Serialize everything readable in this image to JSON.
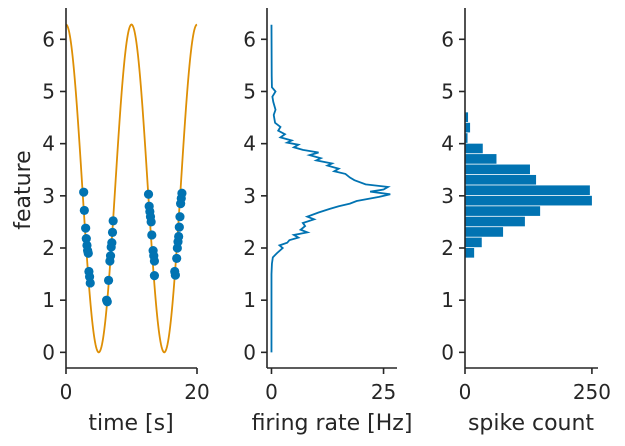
{
  "chart_data": [
    {
      "type": "line+scatter",
      "xlabel": "time [s]",
      "ylabel": "feature",
      "xlim": [
        0,
        20
      ],
      "ylim": [
        -0.3,
        6.6
      ],
      "xticks": [
        0,
        20
      ],
      "yticks": [
        0,
        1,
        2,
        3,
        4,
        5,
        6
      ],
      "grid": false,
      "series": [
        {
          "type": "line",
          "color": "#de8f05",
          "function": "pi + pi*cos(2*pi*t/10)",
          "t_range": [
            0,
            20
          ]
        },
        {
          "type": "scatter",
          "color": "#0173b2",
          "points": [
            [
              2.7,
              3.07
            ],
            [
              2.8,
              2.72
            ],
            [
              3.0,
              2.38
            ],
            [
              3.1,
              2.18
            ],
            [
              3.2,
              2.05
            ],
            [
              3.3,
              1.95
            ],
            [
              3.4,
              1.9
            ],
            [
              3.5,
              1.55
            ],
            [
              3.6,
              1.45
            ],
            [
              3.7,
              1.33
            ],
            [
              6.2,
              1.0
            ],
            [
              6.3,
              0.97
            ],
            [
              6.5,
              1.38
            ],
            [
              6.7,
              1.75
            ],
            [
              6.8,
              1.85
            ],
            [
              6.9,
              2.02
            ],
            [
              7.0,
              2.1
            ],
            [
              7.1,
              2.3
            ],
            [
              7.2,
              2.52
            ],
            [
              12.6,
              3.03
            ],
            [
              12.7,
              2.8
            ],
            [
              12.8,
              2.7
            ],
            [
              12.9,
              2.6
            ],
            [
              13.0,
              2.5
            ],
            [
              13.1,
              2.25
            ],
            [
              13.3,
              1.95
            ],
            [
              13.4,
              1.85
            ],
            [
              13.5,
              1.75
            ],
            [
              13.5,
              1.47
            ],
            [
              16.6,
              1.55
            ],
            [
              16.7,
              1.48
            ],
            [
              16.9,
              1.8
            ],
            [
              17.0,
              2.0
            ],
            [
              17.1,
              2.12
            ],
            [
              17.2,
              2.22
            ],
            [
              17.3,
              2.4
            ],
            [
              17.4,
              2.6
            ],
            [
              17.5,
              2.85
            ],
            [
              17.6,
              2.95
            ],
            [
              17.7,
              3.05
            ]
          ]
        }
      ]
    },
    {
      "type": "line",
      "xlabel": "firing rate [Hz]",
      "xlim": [
        -1,
        28
      ],
      "ylim": [
        -0.3,
        6.6
      ],
      "xticks": [
        0,
        25
      ],
      "yticks": [
        0,
        1,
        2,
        3,
        4,
        5,
        6
      ],
      "grid": false,
      "series": [
        {
          "color": "#0173b2",
          "points": [
            [
              0,
              0.0
            ],
            [
              0,
              1.5
            ],
            [
              0.1,
              1.7
            ],
            [
              0.3,
              1.82
            ],
            [
              1.2,
              1.9
            ],
            [
              2.5,
              2.0
            ],
            [
              1.8,
              2.05
            ],
            [
              3.5,
              2.1
            ],
            [
              4.0,
              2.15
            ],
            [
              6.0,
              2.2
            ],
            [
              5.0,
              2.25
            ],
            [
              8.0,
              2.3
            ],
            [
              6.5,
              2.35
            ],
            [
              7.5,
              2.42
            ],
            [
              7.0,
              2.48
            ],
            [
              9.5,
              2.55
            ],
            [
              8.0,
              2.6
            ],
            [
              10.5,
              2.68
            ],
            [
              13.0,
              2.75
            ],
            [
              15.0,
              2.8
            ],
            [
              17.5,
              2.85
            ],
            [
              19.0,
              2.9
            ],
            [
              24.0,
              2.98
            ],
            [
              26.5,
              3.03
            ],
            [
              22.0,
              3.08
            ],
            [
              25.0,
              3.12
            ],
            [
              26.0,
              3.17
            ],
            [
              21.0,
              3.22
            ],
            [
              18.5,
              3.3
            ],
            [
              17.5,
              3.35
            ],
            [
              16.5,
              3.42
            ],
            [
              14.0,
              3.47
            ],
            [
              15.0,
              3.52
            ],
            [
              12.5,
              3.58
            ],
            [
              13.5,
              3.62
            ],
            [
              10.0,
              3.68
            ],
            [
              11.0,
              3.72
            ],
            [
              8.5,
              3.78
            ],
            [
              10.5,
              3.83
            ],
            [
              7.0,
              3.88
            ],
            [
              5.0,
              3.93
            ],
            [
              6.0,
              3.98
            ],
            [
              3.5,
              4.02
            ],
            [
              4.5,
              4.06
            ],
            [
              2.0,
              4.12
            ],
            [
              3.0,
              4.18
            ],
            [
              1.5,
              4.25
            ],
            [
              2.0,
              4.32
            ],
            [
              0.8,
              4.4
            ],
            [
              0.5,
              4.55
            ],
            [
              0.9,
              4.65
            ],
            [
              0.4,
              4.8
            ],
            [
              0.2,
              4.9
            ],
            [
              0.9,
              5.0
            ],
            [
              0.1,
              5.08
            ],
            [
              0.05,
              5.3
            ],
            [
              0,
              6.28
            ]
          ]
        }
      ]
    },
    {
      "type": "bar-horizontal",
      "xlabel": "spike count",
      "xlim": [
        0,
        262
      ],
      "ylim": [
        -0.3,
        6.6
      ],
      "xticks": [
        0,
        250
      ],
      "yticks": [
        0,
        1,
        2,
        3,
        4,
        5,
        6
      ],
      "grid": false,
      "bin_width": 0.2,
      "bin_starts": [
        1.8,
        2.0,
        2.2,
        2.4,
        2.6,
        2.8,
        3.0,
        3.2,
        3.4,
        3.6,
        3.8,
        4.0,
        4.2,
        4.4
      ],
      "values": [
        18,
        33,
        75,
        118,
        148,
        250,
        246,
        140,
        128,
        62,
        35,
        5,
        10,
        6
      ],
      "color": "#0173b2"
    }
  ]
}
